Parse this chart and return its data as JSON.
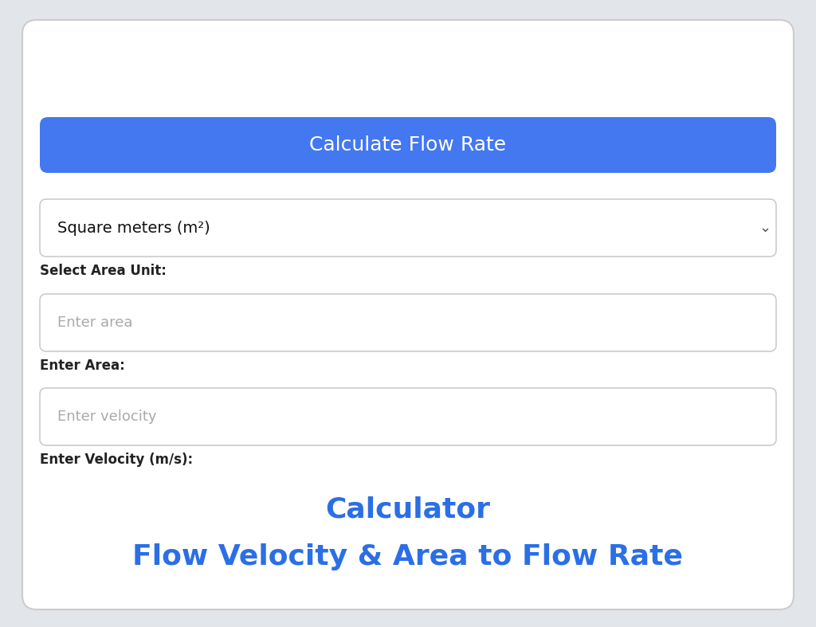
{
  "title_line1": "Flow Velocity & Area to Flow Rate",
  "title_line2": "Calculator",
  "title_color": "#2B6FE6",
  "title_fontsize": 26,
  "title_fontweight": "bold",
  "bg_outer": "#E2E5EA",
  "bg_card": "#FFFFFF",
  "label1": "Enter Velocity (m/s):",
  "placeholder1": "Enter velocity",
  "label2": "Enter Area:",
  "placeholder2": "Enter area",
  "label3": "Select Area Unit:",
  "dropdown_text": "Square meters (m²)",
  "dropdown_arrow": "⌄",
  "button_text": "Calculate Flow Rate",
  "button_color": "#4478F0",
  "button_text_color": "#FFFFFF",
  "button_fontsize": 18,
  "label_color": "#222222",
  "label_fontsize": 12,
  "label_fontweight": "bold",
  "placeholder_color": "#AAAAAA",
  "placeholder_fontsize": 13,
  "input_border_color": "#CCCCCC",
  "input_bg": "#FFFFFF",
  "dropdown_text_color": "#111111",
  "dropdown_fontsize": 14
}
